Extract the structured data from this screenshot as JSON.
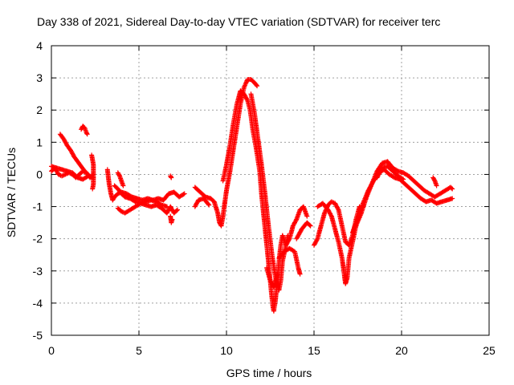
{
  "chart_data": {
    "type": "scatter",
    "title": "Day 338 of 2021, Sidereal Day-to-day VTEC variation (SDTVAR) for receiver terc",
    "xlabel": "GPS time / hours",
    "ylabel": "SDTVAR / TECUs",
    "xlim": [
      0,
      25
    ],
    "ylim": [
      -5,
      4
    ],
    "xticks": [
      "0",
      "5",
      "10",
      "15",
      "20",
      "25"
    ],
    "yticks": [
      "-5",
      "-4",
      "-3",
      "-2",
      "-1",
      "0",
      "1",
      "2",
      "3",
      "4"
    ],
    "grid": true,
    "marker": "+",
    "colors": {
      "series": "#ff0000",
      "grid": "#a0a0a0",
      "axis": "#000000"
    },
    "series": [
      {
        "name": "SDTVAR",
        "segments": [
          [
            [
              0.0,
              0.1
            ],
            [
              0.2,
              0.2
            ],
            [
              0.4,
              0.0
            ],
            [
              0.6,
              -0.05
            ],
            [
              0.8,
              0.0
            ],
            [
              1.0,
              0.05
            ],
            [
              1.2,
              0.0
            ],
            [
              1.4,
              -0.1
            ],
            [
              1.6,
              0.0
            ],
            [
              1.8,
              0.1
            ],
            [
              2.0,
              0.05
            ],
            [
              2.2,
              -0.1
            ],
            [
              2.4,
              0.0
            ]
          ],
          [
            [
              0.0,
              0.25
            ],
            [
              0.3,
              0.2
            ],
            [
              0.6,
              0.15
            ],
            [
              0.9,
              0.1
            ],
            [
              1.2,
              0.05
            ],
            [
              1.5,
              -0.1
            ],
            [
              1.8,
              -0.15
            ],
            [
              2.1,
              -0.05
            ],
            [
              2.4,
              -0.1
            ]
          ],
          [
            [
              0.5,
              1.25
            ],
            [
              0.7,
              1.1
            ],
            [
              0.9,
              0.9
            ],
            [
              1.1,
              0.75
            ],
            [
              1.3,
              0.55
            ],
            [
              1.5,
              0.4
            ],
            [
              1.7,
              0.25
            ],
            [
              1.9,
              0.1
            ],
            [
              2.1,
              0.0
            ]
          ],
          [
            [
              1.7,
              1.4
            ],
            [
              1.8,
              1.5
            ],
            [
              1.9,
              1.45
            ],
            [
              2.0,
              1.3
            ],
            [
              2.05,
              1.25
            ]
          ],
          [
            [
              2.3,
              0.6
            ],
            [
              2.4,
              0.3
            ],
            [
              2.4,
              -0.3
            ],
            [
              2.35,
              -0.45
            ]
          ],
          [
            [
              3.2,
              0.15
            ],
            [
              3.3,
              -0.3
            ],
            [
              3.4,
              -0.6
            ],
            [
              3.5,
              -0.8
            ],
            [
              3.6,
              -0.7
            ],
            [
              3.8,
              -0.6
            ],
            [
              4.0,
              -0.55
            ],
            [
              4.3,
              -0.6
            ],
            [
              4.6,
              -0.7
            ],
            [
              4.9,
              -0.75
            ],
            [
              5.2,
              -0.8
            ],
            [
              5.5,
              -0.75
            ],
            [
              5.8,
              -0.8
            ],
            [
              6.1,
              -0.75
            ],
            [
              6.4,
              -0.8
            ],
            [
              6.7,
              -0.6
            ],
            [
              7.0,
              -0.55
            ],
            [
              7.3,
              -0.7
            ],
            [
              7.6,
              -0.6
            ]
          ],
          [
            [
              3.6,
              -0.35
            ],
            [
              3.8,
              -0.45
            ],
            [
              4.0,
              -0.6
            ],
            [
              4.2,
              -0.7
            ],
            [
              4.5,
              -0.75
            ],
            [
              4.8,
              -0.85
            ],
            [
              5.1,
              -0.9
            ],
            [
              5.4,
              -0.95
            ],
            [
              5.7,
              -1.0
            ],
            [
              6.0,
              -0.95
            ],
            [
              6.3,
              -1.05
            ],
            [
              6.6,
              -1.2
            ],
            [
              6.8,
              -1.0
            ],
            [
              7.0,
              -1.2
            ],
            [
              7.2,
              -1.1
            ]
          ],
          [
            [
              3.8,
              -1.05
            ],
            [
              4.0,
              -1.15
            ],
            [
              4.2,
              -1.2
            ],
            [
              4.5,
              -1.1
            ],
            [
              4.8,
              -1.0
            ],
            [
              5.1,
              -0.9
            ],
            [
              5.4,
              -0.85
            ],
            [
              5.7,
              -0.8
            ],
            [
              6.0,
              -0.85
            ],
            [
              6.3,
              -0.95
            ],
            [
              6.6,
              -1.0
            ]
          ],
          [
            [
              3.8,
              0.05
            ],
            [
              3.9,
              -0.05
            ],
            [
              4.0,
              -0.2
            ],
            [
              4.1,
              -0.35
            ]
          ],
          [
            [
              6.8,
              -1.3
            ],
            [
              6.85,
              -1.5
            ],
            [
              6.9,
              -1.4
            ]
          ],
          [
            [
              6.8,
              -0.05
            ],
            [
              6.85,
              -0.1
            ]
          ],
          [
            [
              8.2,
              -0.4
            ],
            [
              8.5,
              -0.55
            ],
            [
              8.8,
              -0.7
            ],
            [
              9.1,
              -0.75
            ],
            [
              9.3,
              -0.85
            ],
            [
              9.5,
              -1.2
            ],
            [
              9.6,
              -1.5
            ],
            [
              9.7,
              -1.6
            ],
            [
              9.8,
              -1.3
            ],
            [
              9.9,
              -0.9
            ]
          ],
          [
            [
              8.2,
              -1.0
            ],
            [
              8.4,
              -0.8
            ],
            [
              8.7,
              -0.75
            ],
            [
              9.0,
              -0.95
            ]
          ],
          [
            [
              9.9,
              -0.9
            ],
            [
              10.0,
              -0.5
            ],
            [
              10.2,
              0.1
            ],
            [
              10.4,
              0.8
            ],
            [
              10.6,
              1.5
            ],
            [
              10.8,
              2.2
            ],
            [
              11.0,
              2.7
            ],
            [
              11.2,
              2.95
            ],
            [
              11.4,
              2.95
            ],
            [
              11.6,
              2.85
            ],
            [
              11.75,
              2.75
            ]
          ],
          [
            [
              9.8,
              -0.2
            ],
            [
              10.0,
              0.3
            ],
            [
              10.2,
              0.9
            ],
            [
              10.4,
              1.6
            ],
            [
              10.6,
              2.2
            ],
            [
              10.8,
              2.6
            ],
            [
              11.0,
              2.5
            ],
            [
              11.2,
              2.3
            ],
            [
              11.35,
              2.0
            ],
            [
              11.5,
              1.4
            ],
            [
              11.7,
              0.8
            ],
            [
              11.9,
              0.1
            ],
            [
              12.0,
              -0.6
            ],
            [
              12.15,
              -1.4
            ],
            [
              12.3,
              -2.2
            ],
            [
              12.45,
              -3.0
            ],
            [
              12.55,
              -3.6
            ],
            [
              12.65,
              -4.1
            ],
            [
              12.7,
              -4.25
            ],
            [
              12.8,
              -3.9
            ],
            [
              12.9,
              -3.3
            ],
            [
              13.0,
              -2.7
            ],
            [
              13.1,
              -2.2
            ],
            [
              13.2,
              -1.9
            ]
          ],
          [
            [
              11.4,
              2.5
            ],
            [
              11.6,
              1.9
            ],
            [
              11.8,
              1.1
            ],
            [
              12.0,
              0.3
            ],
            [
              12.2,
              -0.6
            ],
            [
              12.4,
              -1.6
            ],
            [
              12.6,
              -2.5
            ],
            [
              12.8,
              -3.2
            ],
            [
              13.0,
              -3.6
            ],
            [
              13.1,
              -3.3
            ],
            [
              13.2,
              -2.7
            ],
            [
              13.4,
              -2.2
            ],
            [
              13.5,
              -1.9
            ]
          ],
          [
            [
              12.3,
              -2.9
            ],
            [
              12.5,
              -3.3
            ],
            [
              12.7,
              -3.5
            ],
            [
              12.9,
              -3.1
            ]
          ],
          [
            [
              13.2,
              -1.9
            ],
            [
              13.4,
              -2.2
            ],
            [
              13.6,
              -2.0
            ],
            [
              13.8,
              -1.6
            ],
            [
              14.0,
              -1.4
            ],
            [
              14.2,
              -1.1
            ],
            [
              14.4,
              -1.0
            ],
            [
              14.6,
              -1.3
            ]
          ],
          [
            [
              13.0,
              -2.6
            ],
            [
              13.3,
              -2.4
            ],
            [
              13.6,
              -2.3
            ],
            [
              13.9,
              -2.4
            ],
            [
              14.1,
              -2.9
            ],
            [
              14.2,
              -3.1
            ]
          ],
          [
            [
              14.0,
              -2.0
            ],
            [
              14.3,
              -1.7
            ],
            [
              14.6,
              -1.5
            ],
            [
              14.8,
              -1.6
            ]
          ],
          [
            [
              15.0,
              -2.2
            ],
            [
              15.2,
              -2.0
            ],
            [
              15.4,
              -1.6
            ],
            [
              15.6,
              -1.2
            ],
            [
              15.8,
              -0.95
            ],
            [
              16.0,
              -0.85
            ],
            [
              16.2,
              -0.9
            ],
            [
              16.4,
              -1.1
            ],
            [
              16.6,
              -1.6
            ],
            [
              16.8,
              -2.1
            ],
            [
              17.0,
              -2.2
            ],
            [
              17.2,
              -1.9
            ],
            [
              17.4,
              -1.4
            ],
            [
              17.6,
              -1.0
            ]
          ],
          [
            [
              15.2,
              -1.0
            ],
            [
              15.5,
              -0.9
            ],
            [
              15.8,
              -1.1
            ],
            [
              16.0,
              -1.3
            ],
            [
              16.2,
              -1.7
            ],
            [
              16.4,
              -2.1
            ],
            [
              16.6,
              -2.6
            ],
            [
              16.7,
              -3.0
            ],
            [
              16.8,
              -3.4
            ],
            [
              16.9,
              -3.2
            ],
            [
              17.0,
              -2.6
            ],
            [
              17.2,
              -2.1
            ],
            [
              17.4,
              -1.6
            ]
          ],
          [
            [
              17.4,
              -1.6
            ],
            [
              17.7,
              -1.2
            ],
            [
              18.0,
              -0.7
            ],
            [
              18.3,
              -0.3
            ],
            [
              18.6,
              0.1
            ],
            [
              18.9,
              0.35
            ],
            [
              19.2,
              0.4
            ],
            [
              19.5,
              0.2
            ],
            [
              19.8,
              0.1
            ],
            [
              20.1,
              0.05
            ],
            [
              20.4,
              -0.05
            ],
            [
              20.7,
              -0.2
            ],
            [
              21.0,
              -0.35
            ],
            [
              21.3,
              -0.5
            ],
            [
              21.6,
              -0.6
            ],
            [
              21.9,
              -0.7
            ],
            [
              22.2,
              -0.6
            ],
            [
              22.5,
              -0.5
            ],
            [
              22.8,
              -0.4
            ],
            [
              22.9,
              -0.45
            ]
          ],
          [
            [
              17.2,
              -1.8
            ],
            [
              17.5,
              -1.4
            ],
            [
              17.8,
              -0.9
            ],
            [
              18.1,
              -0.5
            ],
            [
              18.4,
              -0.2
            ],
            [
              18.7,
              0.05
            ],
            [
              19.0,
              0.15
            ],
            [
              19.3,
              0.0
            ],
            [
              19.6,
              -0.1
            ],
            [
              19.9,
              -0.15
            ],
            [
              20.2,
              -0.3
            ],
            [
              20.5,
              -0.45
            ],
            [
              20.8,
              -0.6
            ],
            [
              21.1,
              -0.75
            ],
            [
              21.4,
              -0.85
            ],
            [
              21.7,
              -0.8
            ],
            [
              22.0,
              -0.9
            ],
            [
              22.3,
              -0.85
            ],
            [
              22.6,
              -0.8
            ],
            [
              22.9,
              -0.75
            ]
          ],
          [
            [
              18.6,
              -0.1
            ],
            [
              18.9,
              0.2
            ],
            [
              19.2,
              0.25
            ],
            [
              19.5,
              0.1
            ],
            [
              19.8,
              -0.05
            ],
            [
              20.1,
              -0.15
            ]
          ],
          [
            [
              21.8,
              -0.1
            ],
            [
              21.9,
              -0.2
            ],
            [
              22.0,
              -0.35
            ]
          ]
        ]
      }
    ]
  }
}
